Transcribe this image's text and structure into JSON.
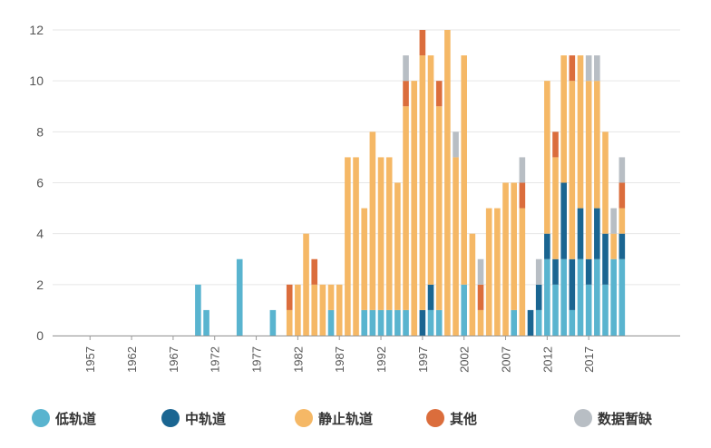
{
  "chart_data": {
    "type": "bar",
    "stacked": true,
    "x": [
      1953,
      1954,
      1955,
      1956,
      1957,
      1958,
      1959,
      1960,
      1961,
      1962,
      1963,
      1964,
      1965,
      1966,
      1967,
      1968,
      1969,
      1970,
      1971,
      1972,
      1973,
      1974,
      1975,
      1976,
      1977,
      1978,
      1979,
      1980,
      1981,
      1982,
      1983,
      1984,
      1985,
      1986,
      1987,
      1988,
      1989,
      1990,
      1991,
      1992,
      1993,
      1994,
      1995,
      1996,
      1997,
      1998,
      1999,
      2000,
      2001,
      2002,
      2003,
      2004,
      2005,
      2006,
      2007,
      2008,
      2009,
      2010,
      2011,
      2012,
      2013,
      2014,
      2015,
      2016,
      2017,
      2018,
      2019,
      2020,
      2021
    ],
    "xticks": [
      "1957",
      "1962",
      "1967",
      "1972",
      "1977",
      "1982",
      "1987",
      "1992",
      "1997",
      "2002",
      "2007",
      "2012",
      "2017"
    ],
    "yticks": [
      "0",
      "2",
      "4",
      "6",
      "8",
      "10",
      "12"
    ],
    "ylim": [
      0,
      12
    ],
    "legend_position": "bottom",
    "grid": true,
    "series": [
      {
        "name": "低轨道",
        "color": "#59b4cf",
        "values": [
          0,
          0,
          0,
          0,
          0,
          0,
          0,
          0,
          0,
          0,
          0,
          0,
          0,
          0,
          0,
          0,
          0,
          2,
          1,
          0,
          0,
          0,
          3,
          0,
          0,
          0,
          1,
          0,
          0,
          0,
          0,
          0,
          0,
          1,
          0,
          0,
          0,
          1,
          1,
          1,
          1,
          1,
          1,
          0,
          0,
          1,
          1,
          0,
          0,
          2,
          0,
          0,
          0,
          0,
          0,
          1,
          0,
          0,
          1,
          3,
          2,
          3,
          1,
          3,
          2,
          3,
          2,
          3,
          3
        ]
      },
      {
        "name": "中轨道",
        "color": "#1a6591",
        "values": [
          0,
          0,
          0,
          0,
          0,
          0,
          0,
          0,
          0,
          0,
          0,
          0,
          0,
          0,
          0,
          0,
          0,
          0,
          0,
          0,
          0,
          0,
          0,
          0,
          0,
          0,
          0,
          0,
          0,
          0,
          0,
          0,
          0,
          0,
          0,
          0,
          0,
          0,
          0,
          0,
          0,
          0,
          0,
          0,
          1,
          1,
          0,
          0,
          0,
          0,
          0,
          0,
          0,
          0,
          0,
          0,
          0,
          1,
          1,
          1,
          1,
          3,
          2,
          2,
          1,
          2,
          2,
          0,
          1
        ]
      },
      {
        "name": "静止轨道",
        "color": "#f5b866",
        "values": [
          0,
          0,
          0,
          0,
          0,
          0,
          0,
          0,
          0,
          0,
          0,
          0,
          0,
          0,
          0,
          0,
          0,
          0,
          0,
          0,
          0,
          0,
          0,
          0,
          0,
          0,
          0,
          0,
          1,
          2,
          4,
          2,
          2,
          1,
          2,
          7,
          7,
          4,
          7,
          6,
          6,
          5,
          8,
          10,
          10,
          9,
          8,
          12,
          7,
          9,
          4,
          1,
          5,
          5,
          6,
          5,
          5,
          0,
          0,
          6,
          4,
          5,
          7,
          6,
          7,
          5,
          4,
          1,
          1
        ]
      },
      {
        "name": "其他",
        "color": "#db6d3c",
        "values": [
          0,
          0,
          0,
          0,
          0,
          0,
          0,
          0,
          0,
          0,
          0,
          0,
          0,
          0,
          0,
          0,
          0,
          0,
          0,
          0,
          0,
          0,
          0,
          0,
          0,
          0,
          0,
          0,
          1,
          0,
          0,
          1,
          0,
          0,
          0,
          0,
          0,
          0,
          0,
          0,
          0,
          0,
          1,
          0,
          1,
          0,
          1,
          0,
          0,
          0,
          0,
          1,
          0,
          0,
          0,
          0,
          1,
          0,
          0,
          0,
          1,
          0,
          1,
          0,
          0,
          0,
          0,
          0,
          1
        ]
      },
      {
        "name": "数据暂缺",
        "color": "#b8bec4",
        "values": [
          0,
          0,
          0,
          0,
          0,
          0,
          0,
          0,
          0,
          0,
          0,
          0,
          0,
          0,
          0,
          0,
          0,
          0,
          0,
          0,
          0,
          0,
          0,
          0,
          0,
          0,
          0,
          0,
          0,
          0,
          0,
          0,
          0,
          0,
          0,
          0,
          0,
          0,
          0,
          0,
          0,
          0,
          1,
          0,
          0,
          0,
          0,
          0,
          1,
          0,
          0,
          1,
          0,
          0,
          0,
          0,
          1,
          0,
          1,
          0,
          0,
          0,
          0,
          0,
          1,
          1,
          0,
          1,
          1
        ]
      }
    ]
  }
}
